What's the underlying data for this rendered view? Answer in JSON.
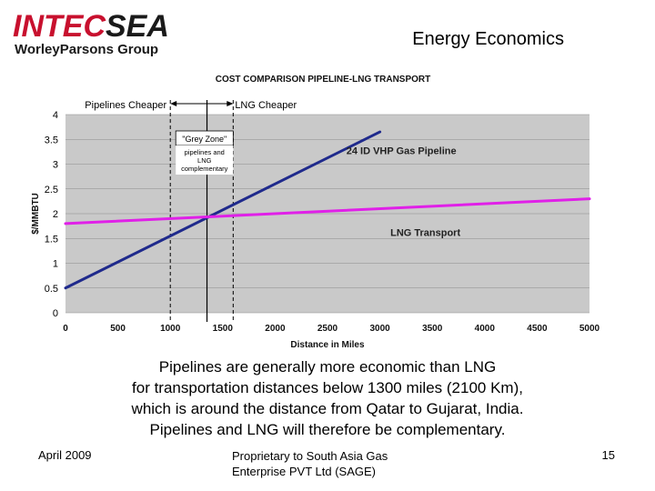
{
  "header": {
    "logo_part1": "INTEC",
    "logo_part2": "SEA",
    "logo_sub": "WorleyParsons Group",
    "title": "Energy Economics"
  },
  "colors": {
    "brand_red": "#c8102e",
    "pipeline_line": "#1f2a8c",
    "lng_line": "#e020e8",
    "plot_bg": "#c9c9c9"
  },
  "chart_data": {
    "type": "line",
    "title": "COST COMPARISON PIPELINE-LNG TRANSPORT",
    "xlabel": "Distance in Miles",
    "ylabel": "$/MMBTU",
    "xlim": [
      0,
      5000
    ],
    "ylim": [
      0,
      4
    ],
    "x_ticks": [
      "0",
      "500",
      "1000",
      "1500",
      "2000",
      "2500",
      "3000",
      "3500",
      "4000",
      "4500",
      "5000"
    ],
    "y_ticks": [
      "0",
      "0.5",
      "1",
      "1.5",
      "2",
      "2.5",
      "3",
      "3.5",
      "4"
    ],
    "grid": "horizontal",
    "series": [
      {
        "name": "24 ID VHP Gas Pipeline",
        "points": [
          [
            0,
            0.5
          ],
          [
            3000,
            3.65
          ]
        ]
      },
      {
        "name": "LNG Transport",
        "points": [
          [
            0,
            1.8
          ],
          [
            5000,
            2.3
          ]
        ]
      }
    ],
    "annotations": {
      "left_region": "Pipelines Cheaper",
      "right_region": "LNG Cheaper",
      "grey_zone_title": "\"Grey Zone\"",
      "grey_zone_text": [
        "pipelines and",
        "LNG",
        "complementary"
      ],
      "grey_zone_range": [
        1000,
        1600
      ],
      "crossover_x": 1350
    }
  },
  "caption": [
    "Pipelines are generally more economic than LNG",
    "for transportation distances below 1300 miles (2100 Km),",
    "which is around the distance from Qatar to Gujarat, India.",
    "Pipelines and LNG will therefore be complementary."
  ],
  "footer": {
    "date": "April 2009",
    "center_line1": "Proprietary to South Asia Gas",
    "center_line2": "Enterprise PVT Ltd (SAGE)",
    "page": "15"
  }
}
